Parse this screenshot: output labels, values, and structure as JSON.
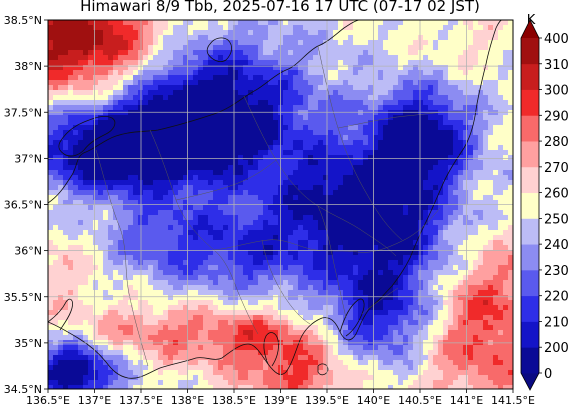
{
  "title": "Himawari 8/9 Tbb, 2025-07-16 17 UTC (07-17 02 JST)",
  "map": {
    "lon_range": [
      136.5,
      141.5
    ],
    "lat_range": [
      34.5,
      38.5
    ],
    "lon_ticks": [
      136.5,
      137.0,
      137.5,
      138.0,
      138.5,
      139.0,
      139.5,
      140.0,
      140.5,
      141.0,
      141.5
    ],
    "lat_ticks": [
      34.5,
      35.0,
      35.5,
      36.0,
      36.5,
      37.0,
      37.5,
      38.0,
      38.5
    ],
    "lon_tick_labels": [
      "136.5°E",
      "137°E",
      "137.5°E",
      "138°E",
      "138.5°E",
      "139°E",
      "139.5°E",
      "140°E",
      "140.5°E",
      "141°E",
      "141.5°E"
    ],
    "lat_tick_labels": [
      "34.5°N",
      "35°N",
      "35.5°N",
      "36°N",
      "36.5°N",
      "37°N",
      "37.5°N",
      "38°N",
      "38.5°N"
    ],
    "grid": true,
    "grid_color": "#b4b4b4",
    "field_description": "Himawari brightness temperature (Tbb) over central Honshu; cold cloud tops (blue) dominate with warm clear areas (red) to the NW corner, S coast and SE ocean"
  },
  "colorbar": {
    "unit": "K",
    "levels": [
      0,
      200,
      210,
      220,
      230,
      240,
      250,
      260,
      270,
      280,
      290,
      300,
      310,
      400
    ],
    "labels": [
      "0",
      "200",
      "210",
      "220",
      "230",
      "240",
      "250",
      "260",
      "270",
      "280",
      "290",
      "300",
      "310",
      "400"
    ],
    "colors": [
      "#0a0a96",
      "#1414c8",
      "#2e2ee8",
      "#5a5aee",
      "#8c8cf2",
      "#bcbcf6",
      "#ffffc8",
      "#ffd2d2",
      "#ffa0a0",
      "#f86a6a",
      "#f02a2a",
      "#c81e1e",
      "#a01010"
    ],
    "under_color": "#0a0a82",
    "over_color": "#8a0000"
  }
}
